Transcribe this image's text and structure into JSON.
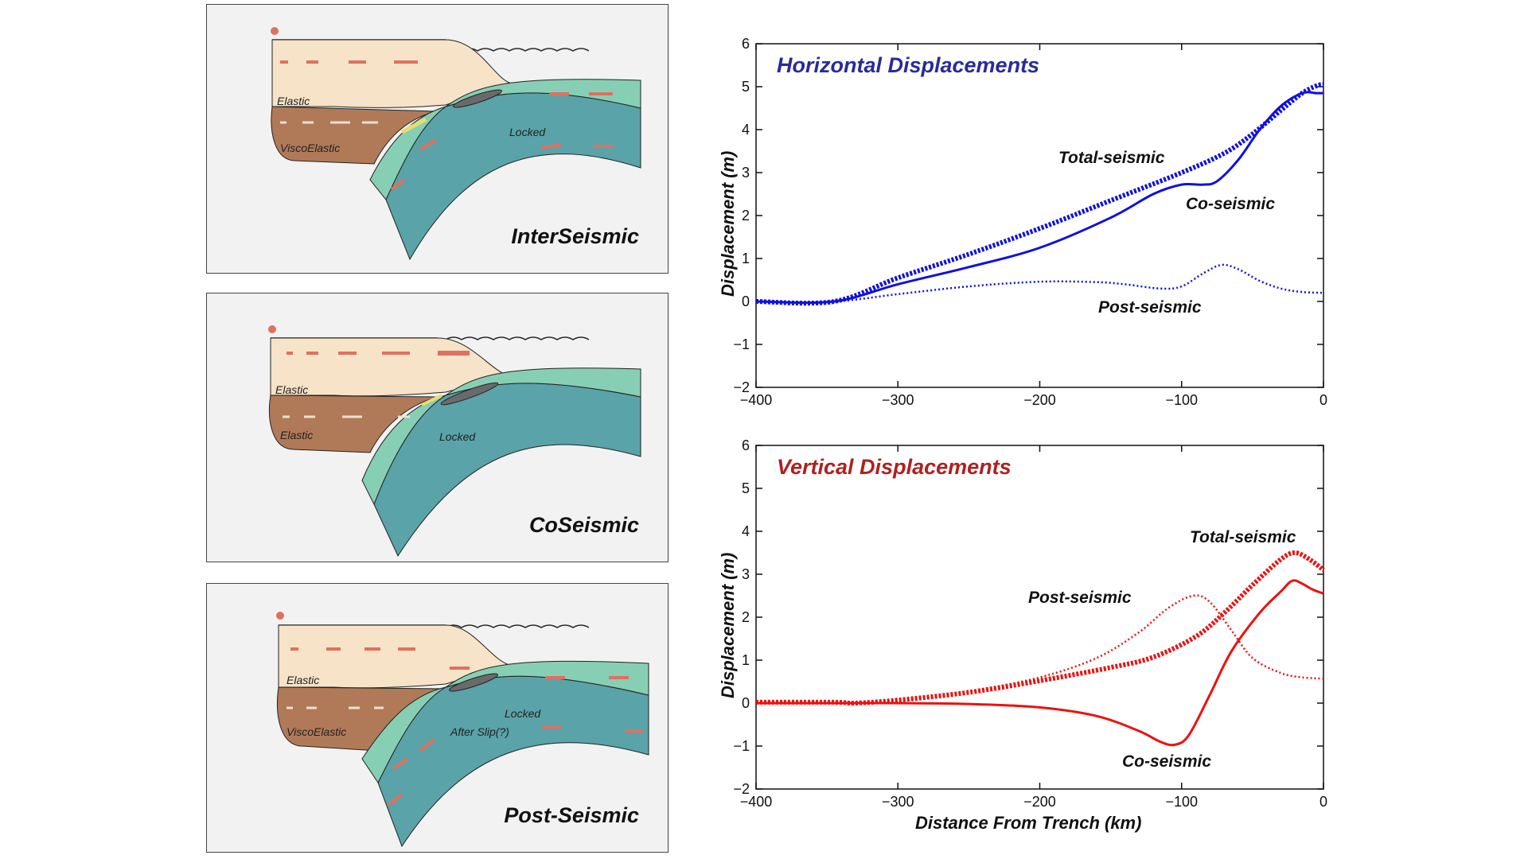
{
  "panels": [
    {
      "title": "InterSeismic",
      "upper_label": "Elastic",
      "lower_label": "ViscoElastic",
      "fault_label": "Locked",
      "extra_label": ""
    },
    {
      "title": "CoSeismic",
      "upper_label": "Elastic",
      "lower_label": "Elastic",
      "fault_label": "Locked",
      "extra_label": ""
    },
    {
      "title": "Post-Seismic",
      "upper_label": "Elastic",
      "lower_label": "ViscoElastic",
      "fault_label": "Locked",
      "extra_label": "After Slip(?)"
    }
  ],
  "colors": {
    "upper_plate": "#f6e3c8",
    "viscoelastic": "#b07a58",
    "slab_top": "#86cfb4",
    "slab_body": "#5aa3a8",
    "arrow": "#e07060",
    "slip_arrow": "#e8dc70",
    "horizontal_title": "#2a2a9a",
    "vertical_title": "#b02020",
    "horizontal_curve": "#1010e0",
    "vertical_curve": "#ee1010"
  },
  "chart_data": [
    {
      "type": "line",
      "title": "Horizontal Displacements",
      "xlabel": "",
      "ylabel": "Displacement (m)",
      "xlim": [
        -400,
        0
      ],
      "ylim": [
        -2,
        6
      ],
      "xticks": [
        -400,
        -300,
        -200,
        -100,
        0
      ],
      "xtick_labels": [
        "−400",
        "−300",
        "−200",
        "−100",
        "0"
      ],
      "yticks": [
        -2,
        -1,
        0,
        1,
        2,
        3,
        4,
        5,
        6
      ],
      "ytick_labels": [
        "−2",
        "−1",
        "0",
        "1",
        "2",
        "3",
        "4",
        "5",
        "6"
      ],
      "series": [
        {
          "name": "Total-seismic",
          "style": "thick-dotted",
          "x": [
            -400,
            -345,
            -300,
            -250,
            -200,
            -150,
            -100,
            -70,
            -50,
            -30,
            -15,
            -5,
            0
          ],
          "y": [
            0,
            0,
            0.55,
            1.1,
            1.7,
            2.35,
            3.0,
            3.45,
            3.9,
            4.45,
            4.85,
            5.02,
            5.05
          ]
        },
        {
          "name": "Co-seismic",
          "style": "solid",
          "x": [
            -400,
            -345,
            -300,
            -250,
            -200,
            -150,
            -120,
            -100,
            -85,
            -75,
            -60,
            -45,
            -30,
            -15,
            -5,
            0
          ],
          "y": [
            0,
            0,
            0.4,
            0.8,
            1.25,
            1.95,
            2.5,
            2.72,
            2.72,
            2.8,
            3.3,
            4.0,
            4.55,
            4.85,
            4.85,
            4.85
          ]
        },
        {
          "name": "Post-seismic",
          "style": "dotted",
          "x": [
            -400,
            -345,
            -300,
            -250,
            -200,
            -160,
            -140,
            -115,
            -100,
            -85,
            -72,
            -60,
            -45,
            -30,
            -15,
            0
          ],
          "y": [
            0,
            0,
            0.17,
            0.35,
            0.46,
            0.45,
            0.4,
            0.3,
            0.35,
            0.65,
            0.85,
            0.75,
            0.48,
            0.3,
            0.22,
            0.2
          ]
        }
      ],
      "annotations": [
        "Total-seismic",
        "Co-seismic",
        "Post-seismic"
      ]
    },
    {
      "type": "line",
      "title": "Vertical Displacements",
      "xlabel": "Distance From Trench (km)",
      "ylabel": "Displacement (m)",
      "xlim": [
        -400,
        0
      ],
      "ylim": [
        -2,
        6
      ],
      "xticks": [
        -400,
        -300,
        -200,
        -100,
        0
      ],
      "xtick_labels": [
        "−400",
        "−300",
        "−200",
        "−100",
        "0"
      ],
      "yticks": [
        -2,
        -1,
        0,
        1,
        2,
        3,
        4,
        5,
        6
      ],
      "ytick_labels": [
        "−2",
        "−1",
        "0",
        "1",
        "2",
        "3",
        "4",
        "5",
        "6"
      ],
      "series": [
        {
          "name": "Total-seismic",
          "style": "thick-dotted",
          "x": [
            -400,
            -345,
            -330,
            -300,
            -250,
            -200,
            -150,
            -120,
            -90,
            -70,
            -50,
            -30,
            -20,
            -10,
            0
          ],
          "y": [
            0.02,
            0.02,
            0,
            0.07,
            0.25,
            0.52,
            0.83,
            1.07,
            1.55,
            2.1,
            2.75,
            3.35,
            3.5,
            3.35,
            3.1
          ]
        },
        {
          "name": "Post-seismic",
          "style": "dotted",
          "x": [
            -400,
            -345,
            -300,
            -250,
            -200,
            -160,
            -130,
            -110,
            -92,
            -80,
            -65,
            -50,
            -30,
            -15,
            0
          ],
          "y": [
            0.02,
            0.02,
            0.09,
            0.28,
            0.6,
            1.05,
            1.65,
            2.2,
            2.5,
            2.35,
            1.7,
            1.05,
            0.7,
            0.6,
            0.57
          ]
        },
        {
          "name": "Co-seismic",
          "style": "solid",
          "x": [
            -400,
            -345,
            -300,
            -250,
            -200,
            -160,
            -130,
            -115,
            -105,
            -95,
            -80,
            -65,
            -45,
            -30,
            -22,
            -15,
            -8,
            0
          ],
          "y": [
            0,
            0,
            0,
            -0.02,
            -0.1,
            -0.3,
            -0.65,
            -0.9,
            -0.97,
            -0.75,
            0.2,
            1.2,
            2.1,
            2.6,
            2.85,
            2.78,
            2.65,
            2.55
          ]
        }
      ],
      "annotations": [
        "Total-seismic",
        "Post-seismic",
        "Co-seismic"
      ]
    }
  ]
}
